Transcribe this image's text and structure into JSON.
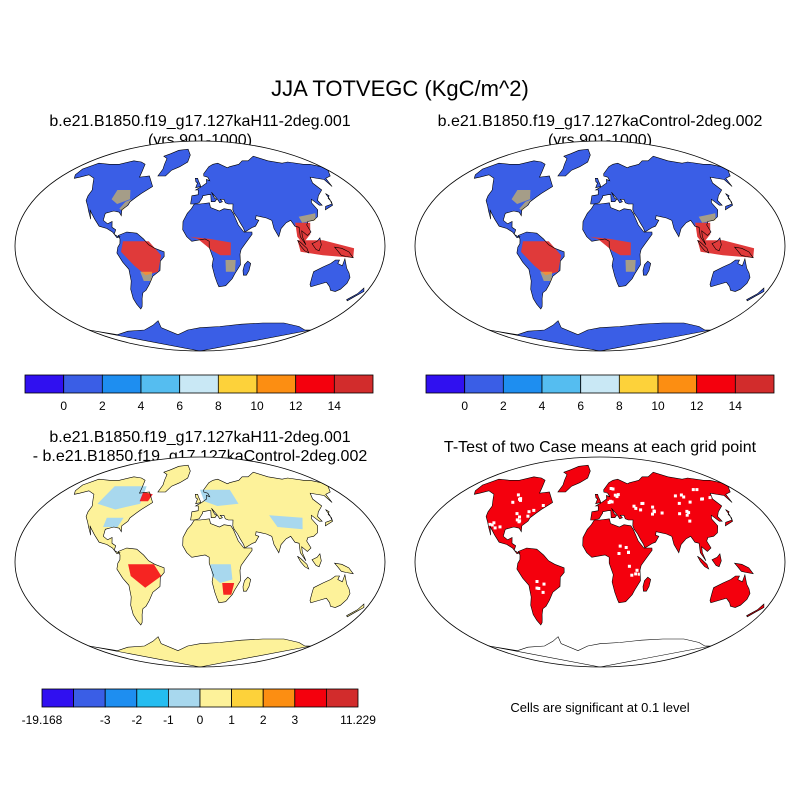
{
  "title": "JJA TOTVEGC (KgC/m^2)",
  "panels": [
    {
      "id": "p1",
      "kind": "case",
      "title_line1": "b.e21.B1850.f19_g17.127kaH11-2deg.001",
      "title_line2": "(yrs 901-1000)"
    },
    {
      "id": "p2",
      "kind": "case",
      "title_line1": "b.e21.B1850.f19_g17.127kaControl-2deg.002",
      "title_line2": "(yrs 901-1000)"
    },
    {
      "id": "p3",
      "kind": "difference",
      "title_line1": "b.e21.B1850.f19_g17.127kaH11-2deg.001",
      "title_line2": "- b.e21.B1850.f19_g17.127kaControl-2deg.002"
    },
    {
      "id": "p4",
      "kind": "significance",
      "title_line1": "T-Test of two Case means at each grid point"
    }
  ],
  "colorbar_cases": {
    "colors": [
      "#3010f0",
      "#3a5ee6",
      "#1e8ef0",
      "#55bdf0",
      "#c9e8f5",
      "#fdd23a",
      "#fc8e12",
      "#f4000d",
      "#d22c2c"
    ],
    "labels": [
      "0",
      "2",
      "4",
      "6",
      "8",
      "10",
      "12",
      "14"
    ]
  },
  "colorbar_diff": {
    "colors": [
      "#3010f0",
      "#3a5ee6",
      "#1e8ef0",
      "#25bdf0",
      "#a8d8ee",
      "#fdf29a",
      "#fdd23a",
      "#fc8e12",
      "#f4000d",
      "#d22c2c"
    ],
    "labels": [
      "-19.168",
      "-3",
      "-2",
      "-1",
      "0",
      "1",
      "2",
      "3",
      "11.229"
    ]
  },
  "significance_note": "Cells are significant at 0.1 level",
  "map_colors": {
    "ocean": "#ffffff",
    "coast": "#000000",
    "case_base": "#3a5ee6",
    "case_tropics": "#e03a3a",
    "case_patch": "#fdd23a",
    "diff_base": "#fdf29a",
    "diff_neg": "#a8d8ee",
    "diff_pos": "#f4000d",
    "signif": "#f4000d"
  }
}
